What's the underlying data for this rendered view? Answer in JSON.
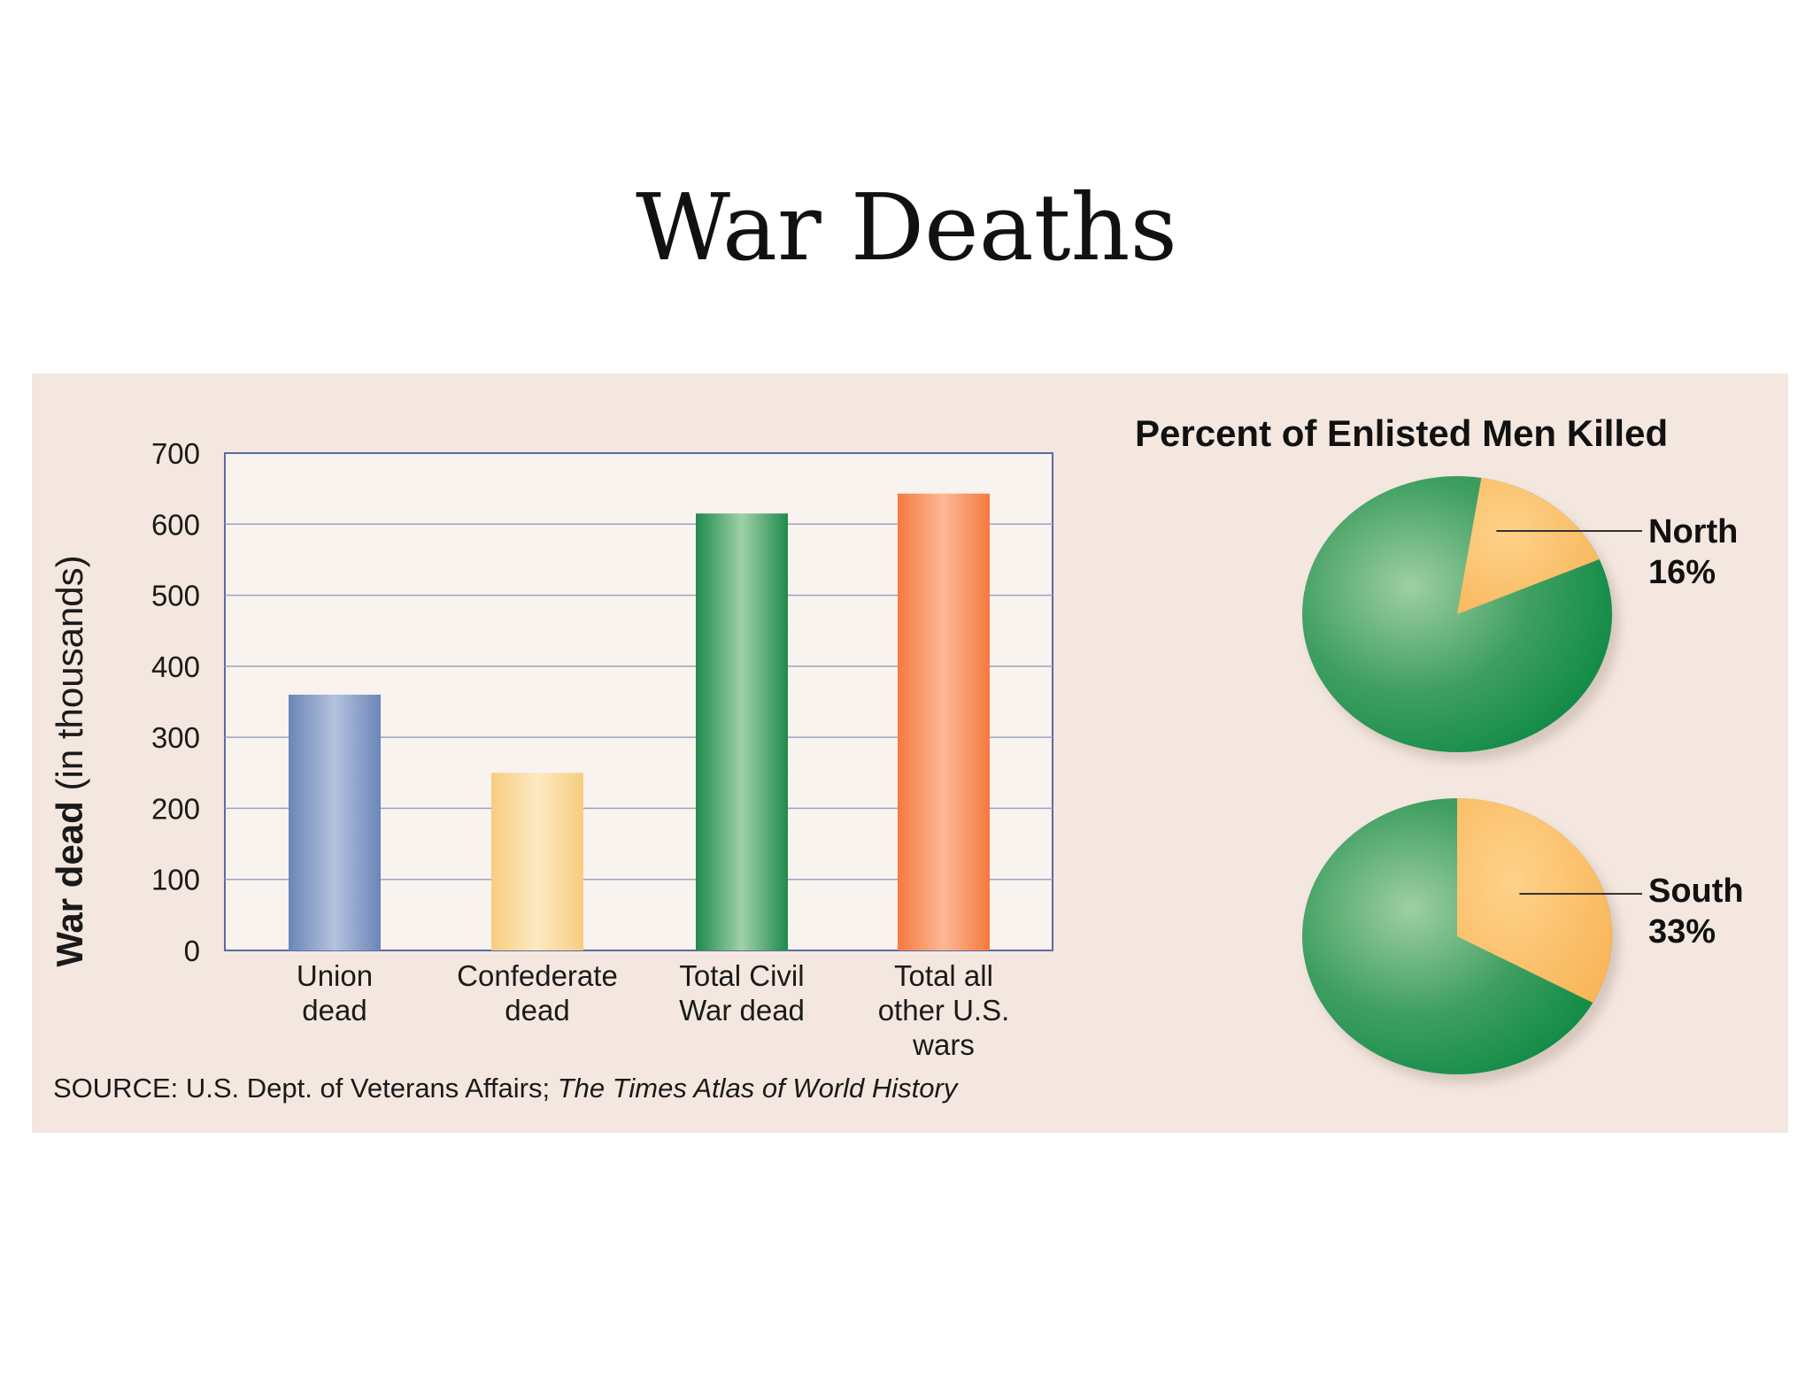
{
  "title": "War Deaths",
  "chart_data": [
    {
      "type": "bar",
      "categories": [
        [
          "Union",
          "dead"
        ],
        [
          "Confederate",
          "dead"
        ],
        [
          "Total Civil",
          "War dead"
        ],
        [
          "Total all",
          "other U.S.",
          "wars"
        ]
      ],
      "values": [
        360,
        250,
        615,
        643
      ],
      "colors": [
        "#8a9fc8",
        "#f9d89a",
        "#3f9d63",
        "#f58a55"
      ],
      "ylabel_bold": "War dead",
      "ylabel_rest": " (in thousands)",
      "ylim": [
        0,
        700
      ],
      "yticks": [
        "0",
        "100",
        "200",
        "300",
        "400",
        "500",
        "600",
        "700"
      ],
      "grid": true
    },
    {
      "type": "pie",
      "title": "Percent of Enlisted Men Killed",
      "pies": [
        {
          "name": "North",
          "value_label": "16%",
          "value": 16
        },
        {
          "name": "South",
          "value_label": "33%",
          "value": 33
        }
      ],
      "colors": {
        "killed": "#fbbd5c",
        "rest": "#23934f"
      }
    }
  ],
  "source": {
    "prefix": "SOURCE: U.S. Dept. of Veterans Affairs; ",
    "italic": "The Times Atlas of World History"
  }
}
